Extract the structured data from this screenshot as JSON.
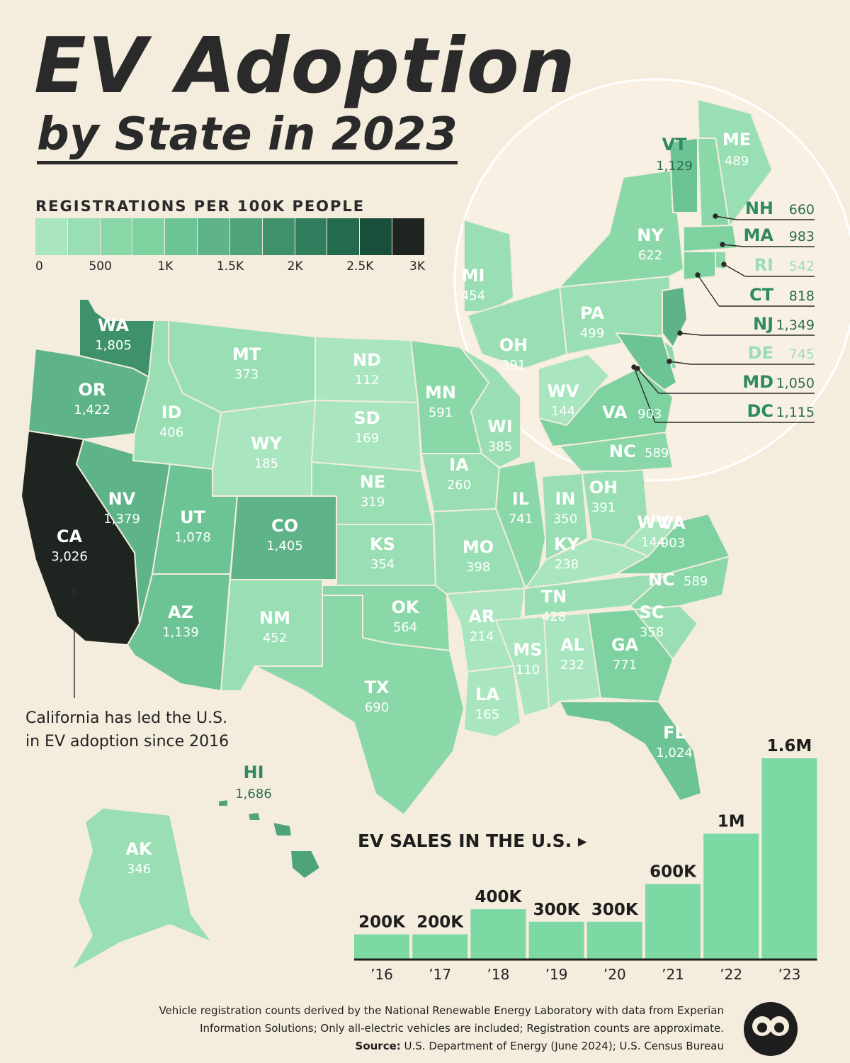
{
  "title": {
    "line1": "EV Adoption",
    "line2": "by State in 2023"
  },
  "legend": {
    "title": "REGISTRATIONS PER 100K PEOPLE",
    "ticks": [
      "0",
      "500",
      "1K",
      "1.5K",
      "2K",
      "2.5K",
      "3K"
    ],
    "colors": [
      "#a9e6bf",
      "#99dfb3",
      "#8ad8a8",
      "#7dd29f",
      "#6cc494",
      "#5eb488",
      "#4ea37a",
      "#3f916c",
      "#307e5d",
      "#236a4e",
      "#184f3a",
      "#1e2420"
    ]
  },
  "states": [
    {
      "code": "WA",
      "value": "1,805"
    },
    {
      "code": "OR",
      "value": "1,422"
    },
    {
      "code": "CA",
      "value": "3,026"
    },
    {
      "code": "NV",
      "value": "1,379"
    },
    {
      "code": "ID",
      "value": "406"
    },
    {
      "code": "MT",
      "value": "373"
    },
    {
      "code": "WY",
      "value": "185"
    },
    {
      "code": "UT",
      "value": "1,078"
    },
    {
      "code": "AZ",
      "value": "1,139"
    },
    {
      "code": "CO",
      "value": "1,405"
    },
    {
      "code": "NM",
      "value": "452"
    },
    {
      "code": "ND",
      "value": "112"
    },
    {
      "code": "SD",
      "value": "169"
    },
    {
      "code": "NE",
      "value": "319"
    },
    {
      "code": "KS",
      "value": "354"
    },
    {
      "code": "OK",
      "value": "564"
    },
    {
      "code": "TX",
      "value": "690"
    },
    {
      "code": "MN",
      "value": "591"
    },
    {
      "code": "IA",
      "value": "260"
    },
    {
      "code": "MO",
      "value": "398"
    },
    {
      "code": "AR",
      "value": "214"
    },
    {
      "code": "LA",
      "value": "165"
    },
    {
      "code": "WI",
      "value": "385"
    },
    {
      "code": "IL",
      "value": "741"
    },
    {
      "code": "IN",
      "value": "350"
    },
    {
      "code": "OH",
      "value": "391"
    },
    {
      "code": "KY",
      "value": "238"
    },
    {
      "code": "TN",
      "value": "428"
    },
    {
      "code": "MS",
      "value": "110"
    },
    {
      "code": "AL",
      "value": "232"
    },
    {
      "code": "GA",
      "value": "771"
    },
    {
      "code": "FL",
      "value": "1,024"
    },
    {
      "code": "SC",
      "value": "358"
    },
    {
      "code": "NC",
      "value": "589"
    },
    {
      "code": "VA",
      "value": "903"
    },
    {
      "code": "WV",
      "value": "144"
    },
    {
      "code": "MI",
      "value": "454"
    },
    {
      "code": "PA",
      "value": "499"
    },
    {
      "code": "NY",
      "value": "622"
    },
    {
      "code": "VT",
      "value": "1,129"
    },
    {
      "code": "ME",
      "value": "489"
    },
    {
      "code": "NH",
      "value": "660"
    },
    {
      "code": "MA",
      "value": "983"
    },
    {
      "code": "RI",
      "value": "542"
    },
    {
      "code": "CT",
      "value": "818"
    },
    {
      "code": "NJ",
      "value": "1,349"
    },
    {
      "code": "DE",
      "value": "745"
    },
    {
      "code": "MD",
      "value": "1,050"
    },
    {
      "code": "DC",
      "value": "1,115"
    },
    {
      "code": "HI",
      "value": "1,686"
    },
    {
      "code": "AK",
      "value": "346"
    }
  ],
  "callout": {
    "line1": "California has led the U.S.",
    "line2": "in EV adoption since 2016"
  },
  "chart_data": {
    "type": "bar",
    "title": "EV SALES IN THE U.S.",
    "categories": [
      "’16",
      "’17",
      "’18",
      "’19",
      "’20",
      "’21",
      "’22",
      "’23"
    ],
    "values": [
      200000,
      200000,
      400000,
      300000,
      300000,
      600000,
      1000000,
      1600000
    ],
    "value_labels": [
      "200K",
      "200K",
      "400K",
      "300K",
      "300K",
      "600K",
      "1M",
      "1.6M"
    ],
    "color": "#7dd9a3"
  },
  "footnote": {
    "line1": "Vehicle registration counts derived by the National Renewable Energy Laboratory with data from Experian",
    "line2": "Information Solutions; Only all-electric vehicles are included; Registration counts are approximate.",
    "source_label": "Source:",
    "source_text": " U.S. Department of Energy (June 2024); U.S. Census Bureau"
  }
}
